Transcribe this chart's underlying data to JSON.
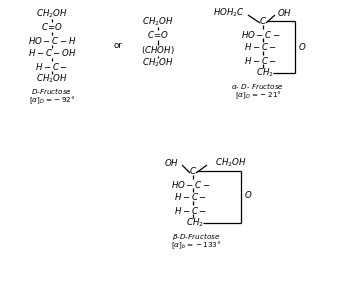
{
  "background_color": "#ffffff",
  "fig_width": 3.57,
  "fig_height": 3.03,
  "dpi": 100
}
